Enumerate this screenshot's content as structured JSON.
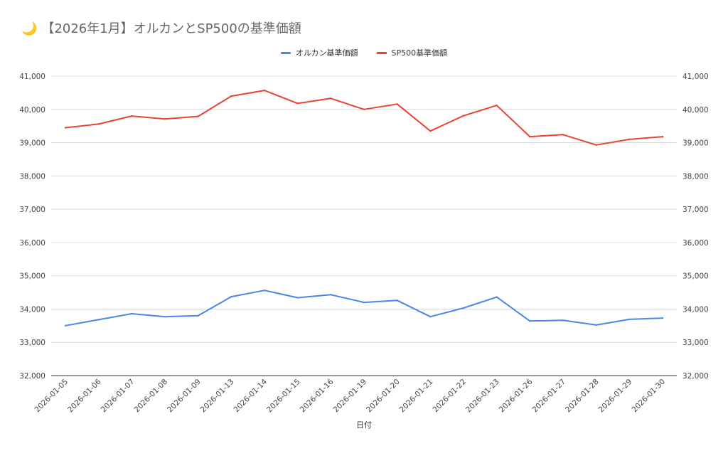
{
  "title": {
    "icon": "moon-icon",
    "icon_glyph": "🌙",
    "text": "【2026年1月】オルカンとSP500の基準価額"
  },
  "legend": [
    {
      "label": "オルカン基準価額",
      "color": "#4a86e8"
    },
    {
      "label": "SP500基準価額",
      "color": "#ea4335"
    }
  ],
  "chart_data": {
    "type": "line",
    "title": "【2026年1月】オルカンとSP500の基準価額",
    "xlabel": "日付",
    "ylabel": "",
    "ylim": [
      32000,
      41000
    ],
    "yticks": [
      32000,
      33000,
      34000,
      35000,
      36000,
      37000,
      38000,
      39000,
      40000,
      41000
    ],
    "ytick_labels": [
      "32,000",
      "33,000",
      "34,000",
      "35,000",
      "36,000",
      "37,000",
      "38,000",
      "39,000",
      "40,000",
      "41,000"
    ],
    "grid": true,
    "legend_position": "top",
    "dual_y_axis_labels": true,
    "categories": [
      "2026-01-05",
      "2026-01-06",
      "2026-01-07",
      "2026-01-08",
      "2026-01-09",
      "2026-01-13",
      "2026-01-14",
      "2026-01-15",
      "2026-01-16",
      "2026-01-19",
      "2026-01-20",
      "2026-01-21",
      "2026-01-22",
      "2026-01-23",
      "2026-01-26",
      "2026-01-27",
      "2026-01-28",
      "2026-01-29",
      "2026-01-30"
    ],
    "series": [
      {
        "name": "オルカン基準価額",
        "color": "#4a86e8",
        "values": [
          33500,
          33680,
          33860,
          33770,
          33800,
          34370,
          34560,
          34340,
          34430,
          34200,
          34260,
          33770,
          34030,
          34360,
          33640,
          33660,
          33520,
          33690,
          33730
        ]
      },
      {
        "name": "SP500基準価額",
        "color": "#ea4335",
        "values": [
          39450,
          39560,
          39800,
          39710,
          39790,
          40400,
          40570,
          40180,
          40330,
          40000,
          40160,
          39350,
          39810,
          40120,
          39180,
          39240,
          38930,
          39100,
          39180
        ]
      }
    ]
  }
}
